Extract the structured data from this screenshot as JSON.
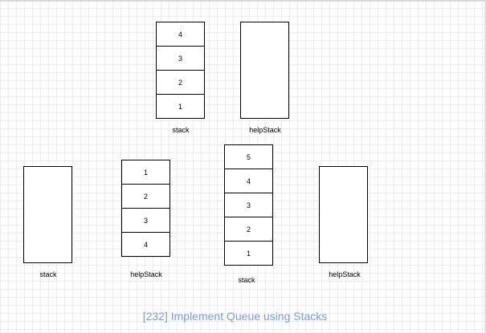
{
  "title": "[232] Implement Queue using Stacks",
  "diagram_top": {
    "stack": {
      "label": "stack",
      "cells": [
        "4",
        "3",
        "2",
        "1"
      ]
    },
    "helpStack": {
      "label": "helpStack",
      "cells": []
    }
  },
  "diagram_bottom_left": {
    "stack": {
      "label": "stack",
      "cells": []
    },
    "helpStack": {
      "label": "helpStack",
      "cells": [
        "1",
        "2",
        "3",
        "4"
      ]
    }
  },
  "diagram_bottom_right": {
    "stack": {
      "label": "stack",
      "cells": [
        "5",
        "4",
        "3",
        "2",
        "1"
      ]
    },
    "helpStack": {
      "label": "helpStack",
      "cells": []
    }
  }
}
